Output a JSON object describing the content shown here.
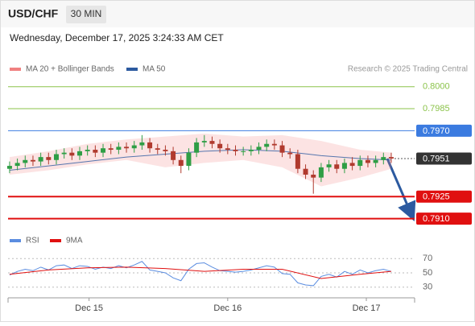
{
  "chart_data": {
    "type": "candlestick",
    "title": "USD/CHF",
    "timeframe": "30 MIN",
    "subtitle": "Wednesday, December 17, 2025 3:24:33 AM CET",
    "credit": "Research © 2025 Trading Central",
    "legend": [
      "MA 20 + Bollinger Bands",
      "MA 50"
    ],
    "up_color": "#2e9e45",
    "down_color": "#b03a2e",
    "ylim": [
      0.7901,
      0.8007
    ],
    "xlim": [
      -0.2,
      52
    ],
    "xticks": [
      {
        "value": 10.2,
        "label": "Dec 15"
      },
      {
        "value": 28.0,
        "label": "Dec 16"
      },
      {
        "value": 45.8,
        "label": "Dec 17"
      }
    ],
    "open": [
      0.7944,
      0.7946,
      0.7948,
      0.795,
      0.7949,
      0.7952,
      0.795,
      0.7954,
      0.7955,
      0.7953,
      0.7956,
      0.7957,
      0.7955,
      0.7958,
      0.7957,
      0.7959,
      0.7958,
      0.796,
      0.7962,
      0.7958,
      0.7957,
      0.7956,
      0.795,
      0.7946,
      0.7955,
      0.7962,
      0.7963,
      0.7961,
      0.7958,
      0.7957,
      0.7956,
      0.7956,
      0.7957,
      0.7959,
      0.7961,
      0.796,
      0.7955,
      0.7954,
      0.7944,
      0.794,
      0.7938,
      0.7945,
      0.7947,
      0.7944,
      0.7948,
      0.7946,
      0.795,
      0.7948,
      0.795,
      0.7952
    ],
    "close": [
      0.7946,
      0.7948,
      0.795,
      0.7949,
      0.7952,
      0.795,
      0.7954,
      0.7955,
      0.7953,
      0.7956,
      0.7957,
      0.7955,
      0.7958,
      0.7957,
      0.7959,
      0.7958,
      0.796,
      0.7962,
      0.7958,
      0.7957,
      0.7956,
      0.795,
      0.7946,
      0.7955,
      0.7962,
      0.7963,
      0.7961,
      0.7958,
      0.7957,
      0.7956,
      0.7956,
      0.7957,
      0.7959,
      0.7961,
      0.796,
      0.7955,
      0.7954,
      0.7944,
      0.794,
      0.7938,
      0.7945,
      0.7947,
      0.7944,
      0.7948,
      0.7946,
      0.795,
      0.7948,
      0.795,
      0.7952,
      0.7951
    ],
    "high": [
      0.7949,
      0.7951,
      0.7953,
      0.7953,
      0.7955,
      0.7955,
      0.7957,
      0.7958,
      0.7958,
      0.7959,
      0.796,
      0.796,
      0.7961,
      0.7961,
      0.7962,
      0.7962,
      0.7963,
      0.7967,
      0.7965,
      0.7961,
      0.796,
      0.7959,
      0.7953,
      0.7958,
      0.7965,
      0.7967,
      0.7966,
      0.7964,
      0.7961,
      0.796,
      0.7959,
      0.796,
      0.7962,
      0.7964,
      0.7964,
      0.7963,
      0.7958,
      0.7957,
      0.7947,
      0.7943,
      0.7948,
      0.795,
      0.795,
      0.7951,
      0.7952,
      0.7953,
      0.7953,
      0.7953,
      0.7955,
      0.7955
    ],
    "low": [
      0.7941,
      0.7943,
      0.7945,
      0.7946,
      0.7946,
      0.7947,
      0.7947,
      0.7951,
      0.795,
      0.795,
      0.7953,
      0.7952,
      0.7952,
      0.7954,
      0.7954,
      0.7955,
      0.7955,
      0.7957,
      0.7955,
      0.7954,
      0.7953,
      0.7947,
      0.7941,
      0.7943,
      0.7952,
      0.7959,
      0.7958,
      0.7955,
      0.7954,
      0.7953,
      0.7953,
      0.7953,
      0.7954,
      0.7956,
      0.7957,
      0.7952,
      0.7951,
      0.7941,
      0.7937,
      0.7927,
      0.7935,
      0.7942,
      0.7941,
      0.7941,
      0.7943,
      0.7943,
      0.7945,
      0.7945,
      0.7947,
      0.7948
    ],
    "overlays": [
      {
        "name": "MA 20 + Bollinger Bands",
        "color": "#f08080",
        "x": [
          0,
          5,
          10,
          15,
          20,
          25,
          30,
          35,
          40,
          45,
          49
        ],
        "upper": [
          0.7952,
          0.7956,
          0.7961,
          0.7964,
          0.7966,
          0.7968,
          0.7966,
          0.7967,
          0.7963,
          0.7957,
          0.7955
        ],
        "lower": [
          0.794,
          0.7943,
          0.7947,
          0.795,
          0.7945,
          0.7948,
          0.795,
          0.7945,
          0.7932,
          0.7938,
          0.7944
        ]
      },
      {
        "name": "MA 50",
        "color": "#2c5aa0",
        "x": [
          0,
          5,
          10,
          15,
          20,
          25,
          30,
          35,
          40,
          45,
          49
        ],
        "values": [
          0.7943,
          0.7946,
          0.7949,
          0.7952,
          0.7954,
          0.7956,
          0.7957,
          0.7956,
          0.7953,
          0.7951,
          0.795
        ]
      }
    ],
    "levels": [
      {
        "value": 0.8,
        "label": "0.8000",
        "color": "#8bc34a",
        "style": "text"
      },
      {
        "value": 0.7985,
        "label": "0.7985",
        "color": "#8bc34a",
        "style": "text"
      },
      {
        "value": 0.797,
        "label": "0.7970",
        "color": "#3b7be0",
        "style": "box"
      },
      {
        "value": 0.7925,
        "label": "0.7925",
        "color": "#e01010",
        "style": "box"
      },
      {
        "value": 0.791,
        "label": "0.7910",
        "color": "#e01010",
        "style": "box"
      }
    ],
    "current": {
      "value": 0.7951,
      "label": "0.7951",
      "color": "#333333"
    },
    "rsi": {
      "ylim": [
        15,
        77
      ],
      "yticks": [
        30,
        50,
        70
      ],
      "series": [
        {
          "name": "RSI",
          "color": "#5b8de0",
          "x": [
            0,
            1,
            2,
            3,
            4,
            5,
            6,
            7,
            8,
            9,
            10,
            11,
            12,
            13,
            14,
            15,
            16,
            17,
            18,
            19,
            20,
            21,
            22,
            23,
            24,
            25,
            26,
            27,
            28,
            29,
            30,
            31,
            32,
            33,
            34,
            35,
            36,
            37,
            38,
            39,
            40,
            41,
            42,
            43,
            44,
            45,
            46,
            47,
            48,
            49
          ],
          "values": [
            47,
            52,
            55,
            53,
            58,
            54,
            60,
            61,
            56,
            60,
            59,
            55,
            58,
            56,
            60,
            57,
            61,
            66,
            54,
            52,
            50,
            43,
            39,
            55,
            63,
            64,
            58,
            53,
            52,
            51,
            52,
            54,
            57,
            60,
            58,
            49,
            48,
            36,
            33,
            32,
            45,
            48,
            44,
            52,
            48,
            54,
            50,
            53,
            55,
            52
          ]
        },
        {
          "name": "9MA",
          "color": "#e01010",
          "x": [
            0,
            5,
            10,
            15,
            20,
            25,
            30,
            35,
            40,
            45,
            49
          ],
          "values": [
            48,
            54,
            57,
            58,
            56,
            52,
            55,
            55,
            42,
            48,
            52
          ]
        }
      ]
    }
  }
}
